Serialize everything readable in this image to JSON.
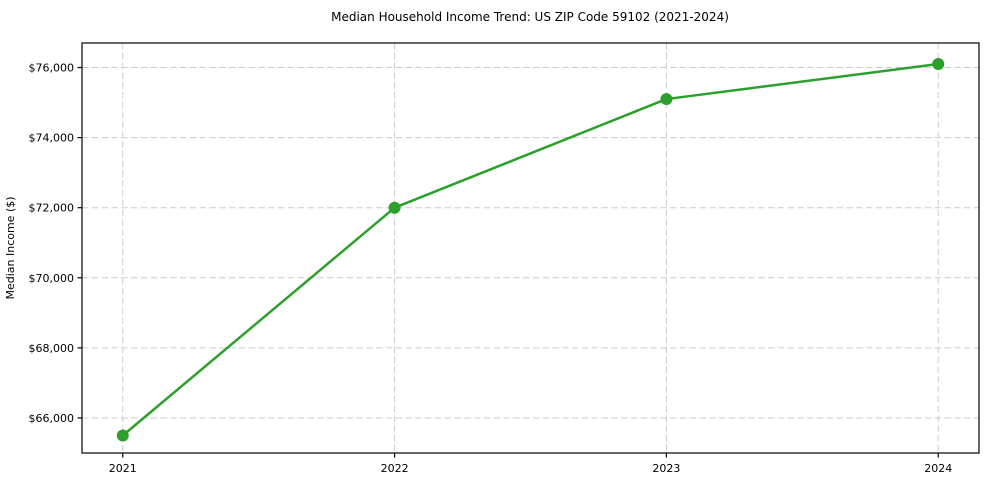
{
  "figure": {
    "background_color": "#ffffff",
    "plot_background_color": "#ffffff"
  },
  "chart_data": {
    "type": "line",
    "title": "Median Household Income Trend: US ZIP Code 59102 (2021-2024)",
    "xlabel": "",
    "ylabel": "Median Income ($)",
    "x": [
      2021,
      2022,
      2023,
      2024
    ],
    "series": [
      {
        "color": "#2ca02c",
        "marker": "circle",
        "values": [
          65500,
          72000,
          75100,
          76100
        ]
      }
    ],
    "xticks": [
      {
        "value": 2021,
        "label": "2021"
      },
      {
        "value": 2022,
        "label": "2022"
      },
      {
        "value": 2023,
        "label": "2023"
      },
      {
        "value": 2024,
        "label": "2024"
      }
    ],
    "yticks": [
      {
        "value": 66000,
        "label": "$66,000"
      },
      {
        "value": 68000,
        "label": "$68,000"
      },
      {
        "value": 70000,
        "label": "$70,000"
      },
      {
        "value": 72000,
        "label": "$72,000"
      },
      {
        "value": 74000,
        "label": "$74,000"
      },
      {
        "value": 76000,
        "label": "$76,000"
      }
    ],
    "xlim": [
      2020.85,
      2024.15
    ],
    "ylim": [
      65000,
      76700
    ],
    "grid": {
      "show": true,
      "style": "dashed",
      "color": "#cccccc"
    },
    "legend": {
      "show": false
    },
    "line_width": 2.5,
    "marker_size": 6,
    "axis_color": "#000000"
  }
}
